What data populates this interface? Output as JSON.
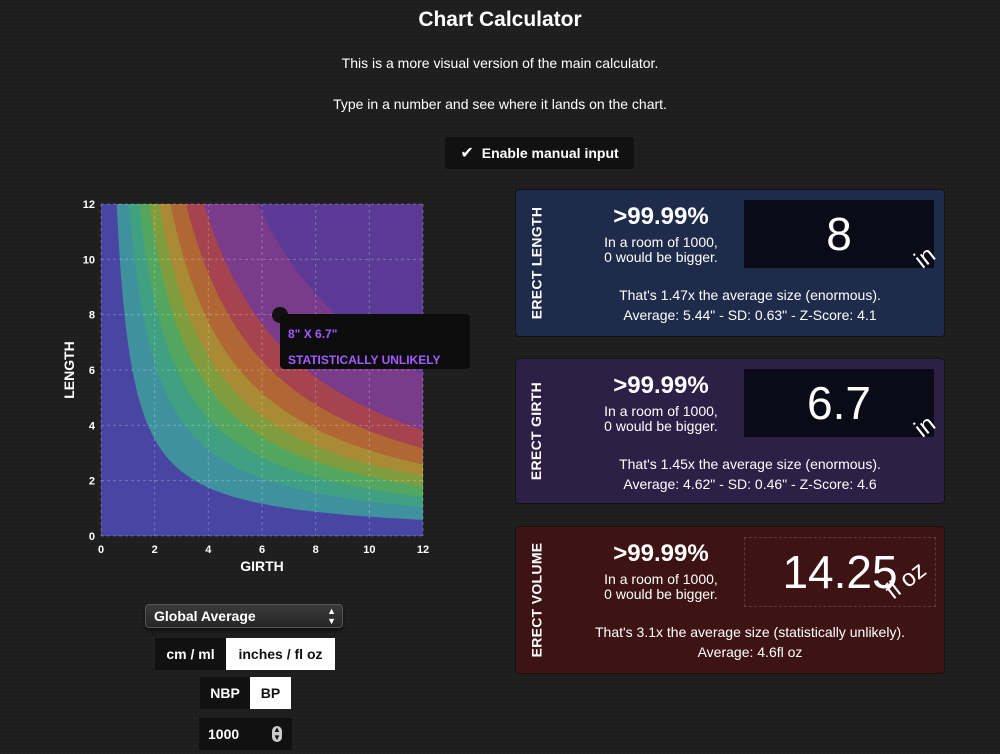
{
  "page": {
    "title": "Chart Calculator",
    "subtitle1": "This is a more visual version of the main calculator.",
    "subtitle2": "Type in a number and see where it lands on the chart.",
    "manual_input_label": "Enable manual input",
    "manual_input_checked": true
  },
  "chart_data": {
    "type": "area",
    "xlabel": "GIRTH",
    "ylabel": "LENGTH",
    "xlim": [
      0,
      12
    ],
    "ylim": [
      0,
      12
    ],
    "x_ticks": [
      "0",
      "2",
      "4",
      "6",
      "8",
      "10",
      "12"
    ],
    "y_ticks": [
      "0",
      "2",
      "4",
      "6",
      "8",
      "10",
      "12"
    ],
    "grid": true,
    "point": {
      "x": 6.7,
      "y": 8
    },
    "tooltip_line1": "8\" X 6.7\"",
    "tooltip_line2": "STATISTICALLY UNLIKELY",
    "band_colors": [
      "#4a3fa3",
      "#3f8fa0",
      "#3f9f86",
      "#4ea762",
      "#7c9e3e",
      "#a88e35",
      "#b16a32",
      "#a8444a",
      "#7e3c8a",
      "#5b3a96"
    ]
  },
  "cards": [
    {
      "label": "ERECT LENGTH",
      "percentile": ">99.99%",
      "room_line1": "In a room of 1000,",
      "room_line2": "0 would be bigger.",
      "value": "8",
      "unit": "in",
      "line1": "That's 1.47x the average size (enormous).",
      "line2": "Average: 5.44\" - SD: 0.63\" - Z-Score: 4.1"
    },
    {
      "label": "ERECT GIRTH",
      "percentile": ">99.99%",
      "room_line1": "In a room of 1000,",
      "room_line2": "0 would be bigger.",
      "value": "6.7",
      "unit": "in",
      "line1": "That's 1.45x the average size (enormous).",
      "line2": "Average: 4.62\" - SD: 0.46\" - Z-Score: 4.6"
    },
    {
      "label": "ERECT VOLUME",
      "percentile": ">99.99%",
      "room_line1": "In a room of 1000,",
      "room_line2": "0 would be bigger.",
      "value": "14.25",
      "unit": "fl oz",
      "line1": "That's 3.1x the average size (statistically unlikely).",
      "line2": "Average: 4.6fl oz"
    }
  ],
  "controls": {
    "dataset_select": "Global Average",
    "unit_metric": "cm / ml",
    "unit_imperial": "inches / fl oz",
    "mode_nbp": "NBP",
    "mode_bp": "BP",
    "room_size": "1000"
  }
}
